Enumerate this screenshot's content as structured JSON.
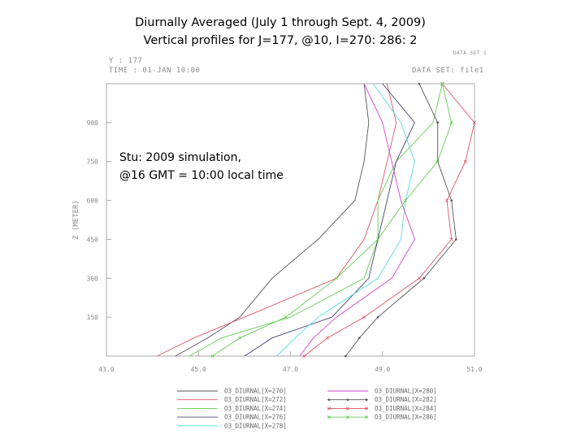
{
  "header": {
    "title_line1": "Diurnally Averaged (July 1 through Sept. 4, 2009)",
    "title_line2": "Vertical profiles for J=177, @10, I=270: 286: 2",
    "y_info": "Y : 177",
    "time_info": "TIME : 01-JAN 10:00",
    "dataset_info": "DATA SET: file1",
    "corner_text": "DATA SET 1"
  },
  "annotation": {
    "line1": "Stu: 2009 simulation,",
    "line2": "@16 GMT = 10:00 local time"
  },
  "chart_data": {
    "type": "line",
    "title": "",
    "xlabel": "",
    "ylabel": "Z (METER)",
    "xlim": [
      43.0,
      51.0
    ],
    "ylim": [
      0,
      1050
    ],
    "xticks": [
      "43.0",
      "45.0",
      "47.0",
      "49.0",
      "51.0"
    ],
    "yticks": [
      {
        "label": "900",
        "value": 900
      },
      {
        "label": "750",
        "value": 750
      },
      {
        "label": "600",
        "value": 600
      },
      {
        "label": "450",
        "value": 450
      },
      {
        "label": "300",
        "value": 300
      },
      {
        "label": "150",
        "value": 150
      }
    ],
    "grid": false,
    "legend_position": "bottom",
    "series": [
      {
        "name": "O3_DIURNAL[X=270]",
        "color": "#555555",
        "marker": "none",
        "points": [
          [
            44.5,
            0
          ],
          [
            45.2,
            70
          ],
          [
            45.9,
            150
          ],
          [
            46.6,
            300
          ],
          [
            47.6,
            450
          ],
          [
            48.4,
            600
          ],
          [
            48.6,
            750
          ],
          [
            48.7,
            900
          ],
          [
            48.6,
            1050
          ]
        ]
      },
      {
        "name": "O3_DIURNAL[X=272]",
        "color": "#dd5566",
        "marker": "none",
        "points": [
          [
            44.1,
            0
          ],
          [
            44.9,
            70
          ],
          [
            46.0,
            150
          ],
          [
            48.0,
            300
          ],
          [
            48.6,
            450
          ],
          [
            48.9,
            600
          ],
          [
            49.1,
            750
          ],
          [
            49.3,
            900
          ],
          [
            49.1,
            1050
          ]
        ]
      },
      {
        "name": "O3_DIURNAL[X=274]",
        "color": "#66cc55",
        "marker": "none",
        "points": [
          [
            44.8,
            0
          ],
          [
            45.5,
            70
          ],
          [
            47.0,
            150
          ],
          [
            48.6,
            300
          ],
          [
            48.9,
            450
          ],
          [
            48.9,
            600
          ],
          [
            49.3,
            750
          ],
          [
            50.1,
            900
          ],
          [
            50.3,
            1050
          ]
        ]
      },
      {
        "name": "O3_DIURNAL[X=276]",
        "color": "#444477",
        "marker": "none",
        "points": [
          [
            46.0,
            0
          ],
          [
            46.6,
            70
          ],
          [
            47.9,
            150
          ],
          [
            48.7,
            300
          ],
          [
            48.9,
            450
          ],
          [
            49.1,
            600
          ],
          [
            49.3,
            750
          ],
          [
            49.7,
            900
          ],
          [
            49.0,
            1050
          ]
        ]
      },
      {
        "name": "O3_DIURNAL[X=278]",
        "color": "#55dddd",
        "marker": "none",
        "points": [
          [
            46.7,
            0
          ],
          [
            47.1,
            70
          ],
          [
            47.6,
            150
          ],
          [
            48.9,
            300
          ],
          [
            49.4,
            450
          ],
          [
            49.5,
            600
          ],
          [
            49.7,
            750
          ],
          [
            49.4,
            900
          ],
          [
            48.8,
            1050
          ]
        ]
      },
      {
        "name": "O3_DIURNAL[X=280]",
        "color": "#cc44cc",
        "marker": "none",
        "points": [
          [
            47.2,
            0
          ],
          [
            47.5,
            70
          ],
          [
            48.0,
            150
          ],
          [
            49.2,
            300
          ],
          [
            49.7,
            450
          ],
          [
            49.4,
            600
          ],
          [
            49.2,
            750
          ],
          [
            49.0,
            900
          ],
          [
            48.6,
            1050
          ]
        ]
      },
      {
        "name": "O3_DIURNAL[X=282]",
        "color": "#555555",
        "marker": "dot",
        "points": [
          [
            48.2,
            0
          ],
          [
            48.5,
            70
          ],
          [
            48.9,
            150
          ],
          [
            49.9,
            300
          ],
          [
            50.6,
            450
          ],
          [
            50.5,
            600
          ],
          [
            50.2,
            750
          ],
          [
            50.2,
            900
          ],
          [
            49.8,
            1050
          ]
        ]
      },
      {
        "name": "O3_DIURNAL[X=284]",
        "color": "#dd5566",
        "marker": "cross",
        "points": [
          [
            47.3,
            0
          ],
          [
            47.8,
            70
          ],
          [
            48.6,
            150
          ],
          [
            49.8,
            300
          ],
          [
            50.5,
            450
          ],
          [
            50.4,
            600
          ],
          [
            50.8,
            750
          ],
          [
            51.0,
            900
          ],
          [
            50.3,
            1050
          ]
        ]
      },
      {
        "name": "O3_DIURNAL[X=286]",
        "color": "#66cc55",
        "marker": "cross",
        "points": [
          [
            45.3,
            0
          ],
          [
            45.9,
            70
          ],
          [
            46.9,
            150
          ],
          [
            48.0,
            300
          ],
          [
            48.9,
            450
          ],
          [
            49.5,
            600
          ],
          [
            50.2,
            750
          ],
          [
            50.5,
            900
          ],
          [
            50.3,
            1050
          ]
        ]
      }
    ]
  }
}
